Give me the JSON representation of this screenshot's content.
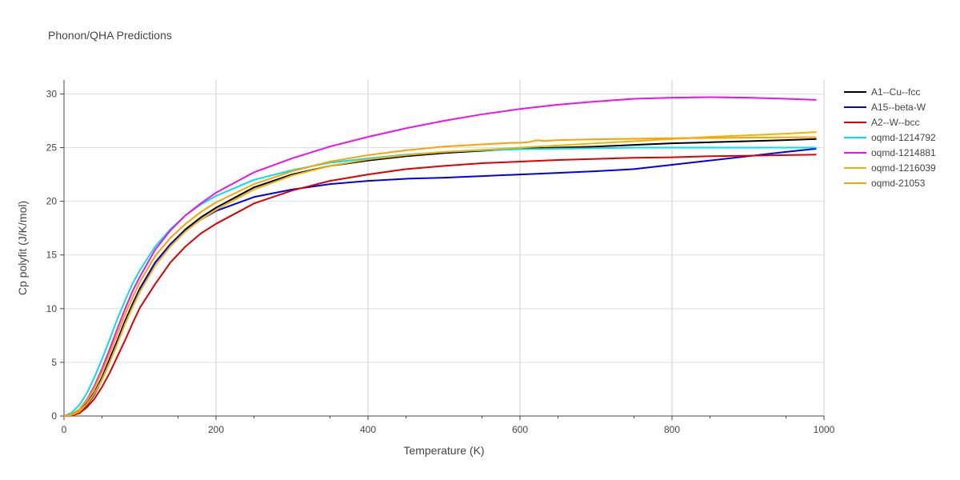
{
  "chart_data": {
    "type": "line",
    "title": "Phonon/QHA Predictions",
    "xlabel": "Temperature (K)",
    "ylabel": "Cp polyfit (J/K/mol)",
    "xlim": [
      0,
      1000
    ],
    "ylim": [
      0,
      31.3
    ],
    "xticks": [
      0,
      200,
      400,
      600,
      800,
      1000
    ],
    "yticks": [
      0,
      5,
      10,
      15,
      20,
      25,
      30
    ],
    "grid": true,
    "legend_position": "right",
    "series": [
      {
        "name": "A1--Cu--fcc",
        "color": "#000000",
        "x": [
          0,
          10,
          20,
          30,
          40,
          50,
          60,
          70,
          80,
          90,
          100,
          120,
          140,
          160,
          180,
          200,
          250,
          300,
          350,
          400,
          450,
          500,
          550,
          600,
          650,
          700,
          750,
          800,
          850,
          900,
          950,
          990
        ],
        "y": [
          0,
          0.1,
          0.5,
          1.2,
          2.2,
          3.6,
          5.3,
          7.0,
          8.8,
          10.4,
          11.9,
          14.3,
          16.0,
          17.4,
          18.5,
          19.4,
          21.3,
          22.5,
          23.3,
          23.8,
          24.2,
          24.5,
          24.7,
          24.9,
          25.0,
          25.1,
          25.25,
          25.4,
          25.5,
          25.6,
          25.7,
          25.8
        ]
      },
      {
        "name": "A15--beta-W",
        "color": "#0000ee",
        "x": [
          0,
          10,
          20,
          30,
          40,
          50,
          60,
          70,
          80,
          90,
          100,
          120,
          140,
          160,
          180,
          200,
          250,
          300,
          350,
          400,
          450,
          500,
          550,
          600,
          650,
          700,
          750,
          800,
          850,
          900,
          950,
          990
        ],
        "y": [
          0,
          0.1,
          0.4,
          1.0,
          2.0,
          3.4,
          5.0,
          6.8,
          8.6,
          10.2,
          11.8,
          14.3,
          16.0,
          17.3,
          18.3,
          19.1,
          20.4,
          21.1,
          21.6,
          21.9,
          22.1,
          22.2,
          22.35,
          22.5,
          22.65,
          22.8,
          23.0,
          23.4,
          23.8,
          24.2,
          24.6,
          24.9
        ]
      },
      {
        "name": "A2--W--bcc",
        "color": "#e00000",
        "x": [
          0,
          10,
          20,
          30,
          40,
          50,
          60,
          70,
          80,
          90,
          100,
          120,
          140,
          160,
          180,
          200,
          250,
          300,
          350,
          400,
          450,
          500,
          550,
          600,
          650,
          700,
          750,
          800,
          850,
          900,
          950,
          990
        ],
        "y": [
          0,
          0.05,
          0.25,
          0.8,
          1.6,
          2.7,
          4.0,
          5.5,
          7.0,
          8.6,
          10.1,
          12.3,
          14.3,
          15.8,
          17.0,
          17.9,
          19.8,
          21.0,
          21.9,
          22.5,
          23.0,
          23.3,
          23.55,
          23.7,
          23.85,
          23.95,
          24.05,
          24.1,
          24.2,
          24.25,
          24.3,
          24.35
        ]
      },
      {
        "name": "oqmd-1214792",
        "color": "#00e0f0",
        "x": [
          0,
          10,
          20,
          30,
          40,
          50,
          60,
          70,
          80,
          90,
          100,
          120,
          140,
          160,
          180,
          200,
          250,
          300,
          350,
          400,
          450,
          500,
          550,
          600,
          650,
          700,
          750,
          800,
          850,
          900,
          950,
          990
        ],
        "y": [
          0,
          0.3,
          1.0,
          2.1,
          3.6,
          5.3,
          7.1,
          9.0,
          10.7,
          12.3,
          13.6,
          15.8,
          17.4,
          18.7,
          19.7,
          20.5,
          22.0,
          22.9,
          23.6,
          24.0,
          24.35,
          24.6,
          24.75,
          24.85,
          24.9,
          24.95,
          25.0,
          25.0,
          25.0,
          25.0,
          25.0,
          25.0
        ]
      },
      {
        "name": "oqmd-1214881",
        "color": "#ee11ee",
        "x": [
          0,
          10,
          20,
          30,
          40,
          50,
          60,
          70,
          80,
          90,
          100,
          120,
          140,
          160,
          180,
          200,
          250,
          300,
          350,
          400,
          450,
          500,
          550,
          600,
          650,
          700,
          750,
          800,
          850,
          900,
          950,
          990
        ],
        "y": [
          0,
          0.15,
          0.6,
          1.5,
          2.8,
          4.4,
          6.2,
          8.1,
          9.9,
          11.6,
          13.0,
          15.5,
          17.3,
          18.7,
          19.8,
          20.8,
          22.7,
          24.0,
          25.1,
          26.0,
          26.8,
          27.5,
          28.1,
          28.6,
          29.0,
          29.3,
          29.55,
          29.65,
          29.7,
          29.65,
          29.55,
          29.45
        ]
      },
      {
        "name": "oqmd-1216039",
        "color": "#f0b400",
        "x": [
          0,
          10,
          20,
          30,
          40,
          50,
          60,
          70,
          80,
          90,
          100,
          120,
          140,
          160,
          180,
          200,
          250,
          300,
          350,
          400,
          450,
          500,
          550,
          600,
          650,
          700,
          750,
          800,
          850,
          900,
          950,
          990
        ],
        "y": [
          0,
          0.1,
          0.4,
          1.1,
          2.1,
          3.4,
          5.0,
          6.7,
          8.5,
          10.1,
          11.6,
          14.0,
          15.8,
          17.2,
          18.3,
          19.2,
          21.1,
          22.4,
          23.3,
          23.9,
          24.3,
          24.6,
          24.8,
          25.0,
          25.2,
          25.4,
          25.6,
          25.8,
          26.0,
          26.15,
          26.3,
          26.45
        ]
      },
      {
        "name": "oqmd-21053",
        "color": "#ffa000",
        "x": [
          0,
          10,
          20,
          30,
          40,
          50,
          60,
          70,
          80,
          90,
          100,
          120,
          140,
          160,
          180,
          200,
          250,
          300,
          350,
          400,
          450,
          500,
          550,
          590,
          600,
          610,
          620,
          625,
          630,
          640,
          650,
          700,
          750,
          800,
          850,
          900,
          950,
          990
        ],
        "y": [
          0,
          0.15,
          0.6,
          1.4,
          2.6,
          4.1,
          5.8,
          7.6,
          9.4,
          11.0,
          12.5,
          14.9,
          16.6,
          17.9,
          19.0,
          19.9,
          21.6,
          22.8,
          23.7,
          24.3,
          24.75,
          25.1,
          25.3,
          25.45,
          25.45,
          25.5,
          25.65,
          25.68,
          25.62,
          25.65,
          25.7,
          25.78,
          25.82,
          25.88,
          25.9,
          25.93,
          25.95,
          25.97
        ]
      }
    ]
  }
}
